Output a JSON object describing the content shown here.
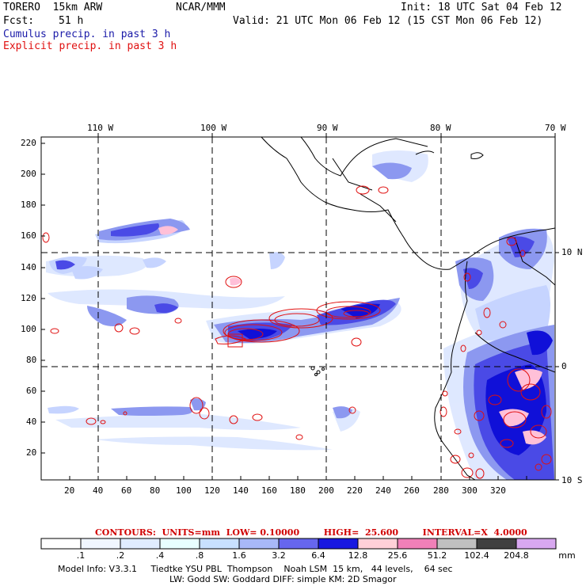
{
  "header": {
    "model": "TORERO  15km ARW",
    "center": "NCAR/MMM",
    "init": "Init: 18 UTC Sat 04 Feb 12",
    "fcst_label": "Fcst:",
    "fcst_hours": "51 h",
    "valid": "Valid: 21 UTC Mon 06 Feb 12 (15 CST Mon 06 Feb 12)",
    "cumulus": "Cumulus precip. in past 3 h",
    "explicit": "Explicit precip. in past 3 h"
  },
  "map": {
    "lon_labels": [
      "110 W",
      "100 W",
      "90 W",
      "80 W",
      "70 W"
    ],
    "lat_labels": [
      "10 N",
      "0",
      "10 S"
    ],
    "x_ticks": [
      "20",
      "40",
      "60",
      "80",
      "100",
      "120",
      "140",
      "160",
      "180",
      "200",
      "220",
      "240",
      "260",
      "280",
      "300",
      "320"
    ],
    "y_ticks": [
      "220",
      "200",
      "180",
      "160",
      "140",
      "120",
      "100",
      "80",
      "60",
      "40",
      "20"
    ],
    "colors": {
      "light1": "#e8f0ff",
      "light2": "#c8d8ff",
      "mid": "#8c98f0",
      "strong": "#4a4ae6",
      "deep": "#1010d8",
      "contour": "#e01010",
      "pink": "#ffc0d8"
    }
  },
  "contours": {
    "text": "CONTOURS:  UNITS=mm  LOW= 0.10000        HIGH=  25.600        INTERVAL=X  4.0000"
  },
  "colorbar": {
    "labels": [
      ".1",
      ".2",
      ".4",
      ".8",
      "1.6",
      "3.2",
      "6.4",
      "12.8",
      "25.6",
      "51.2",
      "102.4",
      "204.8"
    ],
    "unit": "mm",
    "colors": [
      "#ffffff",
      "#f0f6ff",
      "#e0ecff",
      "#e8ffff",
      "#c8e0ff",
      "#a8b8f8",
      "#6666ee",
      "#1818e0",
      "#ffd0d8",
      "#f080b8",
      "#c0c0c0",
      "#404040",
      "#d8a8f0"
    ]
  },
  "footer": {
    "line1": "Model Info: V3.3.1     Tiedtke YSU PBL  Thompson    Noah LSM  15 km,   44 levels,    64 sec",
    "line2": "LW: Godd SW: Goddard DIFF: simple KM: 2D Smagor"
  }
}
